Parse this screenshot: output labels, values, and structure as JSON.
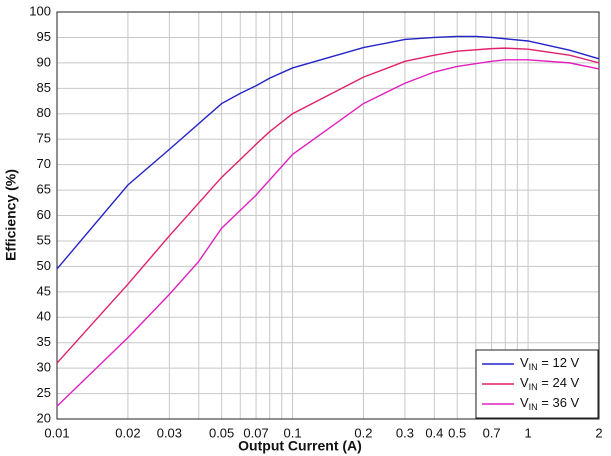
{
  "chart_data": {
    "type": "line",
    "x_label": "Output Current (A)",
    "y_label": "Efficiency (%)",
    "xlim": [
      0.01,
      2
    ],
    "ylim": [
      20,
      100
    ],
    "x_log": true,
    "grid": true,
    "xticks": [
      0.01,
      0.02,
      0.03,
      0.05,
      0.07,
      0.1,
      0.2,
      0.3,
      0.4,
      0.5,
      0.7,
      1,
      2
    ],
    "x_minor_grid": [
      0.04,
      0.06,
      0.08,
      0.09,
      0.6,
      0.8,
      0.9
    ],
    "yticks": [
      20,
      25,
      30,
      35,
      40,
      45,
      50,
      55,
      60,
      65,
      70,
      75,
      80,
      85,
      90,
      95,
      100
    ],
    "legend": "lower right",
    "series": [
      {
        "name": "VIN = 12 V",
        "color": "#2323c8",
        "x": [
          0.01,
          0.02,
          0.03,
          0.05,
          0.06,
          0.07,
          0.08,
          0.1,
          0.2,
          0.3,
          0.4,
          0.5,
          0.6,
          0.7,
          1,
          1.5,
          2
        ],
        "values": [
          49.5,
          66,
          73,
          82,
          84,
          85.5,
          87,
          89,
          93,
          94.6,
          95,
          95.2,
          95.2,
          95,
          94.3,
          92.5,
          90.8
        ]
      },
      {
        "name": "VIN = 24 V",
        "color": "#e0206a",
        "x": [
          0.01,
          0.02,
          0.03,
          0.05,
          0.06,
          0.07,
          0.08,
          0.1,
          0.2,
          0.3,
          0.4,
          0.5,
          0.7,
          0.8,
          1,
          1.5,
          2
        ],
        "values": [
          31,
          46.5,
          56,
          67.5,
          71,
          74,
          76.5,
          80,
          87.2,
          90.3,
          91.5,
          92.3,
          92.8,
          92.9,
          92.7,
          91.5,
          90
        ]
      },
      {
        "name": "VIN = 36 V",
        "color": "#e020c0",
        "x": [
          0.01,
          0.02,
          0.03,
          0.04,
          0.05,
          0.07,
          0.1,
          0.2,
          0.3,
          0.4,
          0.5,
          0.7,
          0.8,
          1,
          1.5,
          2
        ],
        "values": [
          22.5,
          36,
          44.5,
          51,
          57.5,
          64,
          72,
          82,
          86,
          88.2,
          89.3,
          90.3,
          90.6,
          90.6,
          90,
          88.8
        ]
      }
    ]
  }
}
